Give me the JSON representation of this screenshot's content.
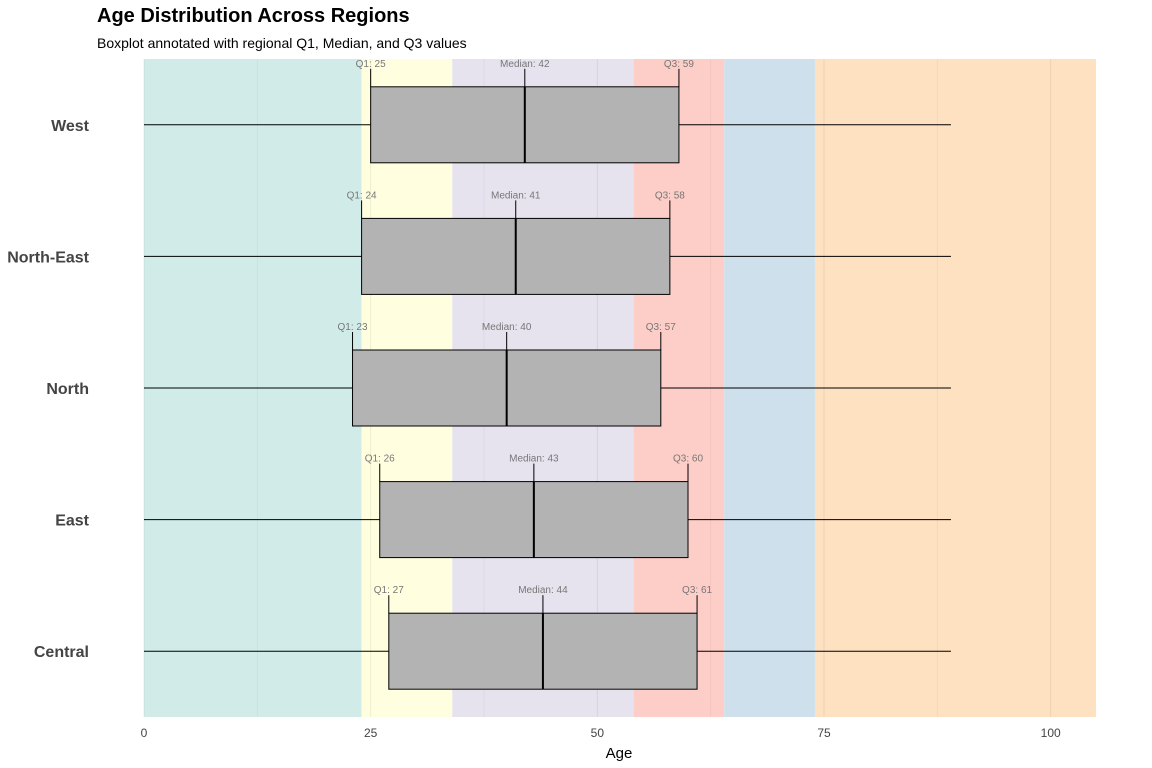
{
  "chart_data": {
    "type": "boxplot",
    "title": "Age Distribution Across Regions",
    "subtitle": "Boxplot annotated with regional Q1, Median, and Q3 values",
    "xlabel": "Age",
    "ylabel": "",
    "xlim": [
      0,
      105
    ],
    "x_ticks": [
      0,
      25,
      50,
      75,
      100
    ],
    "grid": true,
    "background_bands": [
      {
        "from": 0,
        "to": 24,
        "color": "#d1ece8"
      },
      {
        "from": 24,
        "to": 34,
        "color": "#ffffe0"
      },
      {
        "from": 34,
        "to": 54,
        "color": "#e6e2ee"
      },
      {
        "from": 54,
        "to": 64,
        "color": "#fdcdc7"
      },
      {
        "from": 64,
        "to": 74,
        "color": "#cde0ec"
      },
      {
        "from": 74,
        "to": 105,
        "color": "#fde1c1"
      }
    ],
    "box_color": "#b3b3b3",
    "categories": [
      "West",
      "North-East",
      "North",
      "East",
      "Central"
    ],
    "boxes": [
      {
        "region": "West",
        "min": 0,
        "q1": 25,
        "median": 42,
        "q3": 59,
        "max": 89,
        "q1_label": "Q1: 25",
        "median_label": "Median: 42",
        "q3_label": "Q3: 59"
      },
      {
        "region": "North-East",
        "min": 0,
        "q1": 24,
        "median": 41,
        "q3": 58,
        "max": 89,
        "q1_label": "Q1: 24",
        "median_label": "Median: 41",
        "q3_label": "Q3: 58"
      },
      {
        "region": "North",
        "min": 0,
        "q1": 23,
        "median": 40,
        "q3": 57,
        "max": 89,
        "q1_label": "Q1: 23",
        "median_label": "Median: 40",
        "q3_label": "Q3: 57"
      },
      {
        "region": "East",
        "min": 0,
        "q1": 26,
        "median": 43,
        "q3": 60,
        "max": 89,
        "q1_label": "Q1: 26",
        "median_label": "Median: 43",
        "q3_label": "Q3: 60"
      },
      {
        "region": "Central",
        "min": 0,
        "q1": 27,
        "median": 44,
        "q3": 61,
        "max": 89,
        "q1_label": "Q1: 27",
        "median_label": "Median: 44",
        "q3_label": "Q3: 61"
      }
    ]
  }
}
